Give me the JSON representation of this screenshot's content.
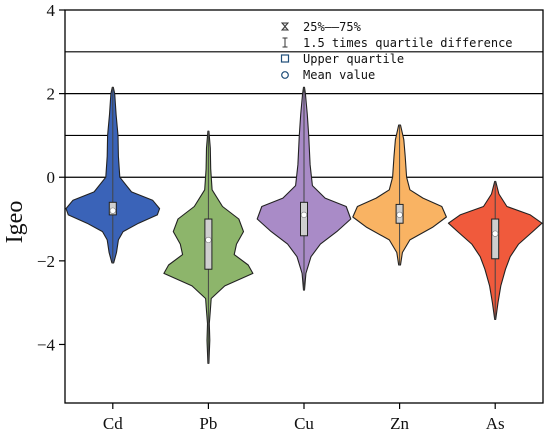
{
  "chart_data": {
    "type": "violin",
    "ylabel": "Igeo",
    "xlabel": "",
    "ylim": [
      -5.4,
      4
    ],
    "yticks": [
      -4,
      -2,
      0,
      2,
      4
    ],
    "reference_lines": [
      0,
      1,
      2,
      3
    ],
    "grid": false,
    "legend_position": "top-right",
    "legend": [
      {
        "symbol": "box-icon",
        "label": "25%——75%"
      },
      {
        "symbol": "whisker-icon",
        "label": "1.5 times quartile difference"
      },
      {
        "symbol": "square-icon",
        "label": "Upper quartile"
      },
      {
        "symbol": "circle-icon",
        "label": "Mean value"
      }
    ],
    "categories": [
      "Cd",
      "Pb",
      "Cu",
      "Zn",
      "As"
    ],
    "colors": [
      "#3a63b8",
      "#8db56b",
      "#a98bc7",
      "#f9b363",
      "#f05a3c"
    ],
    "series": [
      {
        "category": "Cd",
        "min": -2.05,
        "max": 2.15,
        "q1": -0.9,
        "median": -0.8,
        "q3": -0.6,
        "mean": -0.75,
        "profile": [
          [
            -2.05,
            0.02
          ],
          [
            -1.8,
            0.08
          ],
          [
            -1.5,
            0.12
          ],
          [
            -1.3,
            0.22
          ],
          [
            -1.1,
            0.55
          ],
          [
            -0.9,
            0.95
          ],
          [
            -0.75,
            1.0
          ],
          [
            -0.55,
            0.85
          ],
          [
            -0.35,
            0.4
          ],
          [
            0.0,
            0.15
          ],
          [
            0.5,
            0.12
          ],
          [
            1.0,
            0.11
          ],
          [
            1.5,
            0.07
          ],
          [
            2.0,
            0.04
          ],
          [
            2.15,
            0.01
          ]
        ]
      },
      {
        "category": "Pb",
        "min": -4.45,
        "max": 1.1,
        "q1": -2.2,
        "median": -1.5,
        "q3": -1.0,
        "mean": -1.45,
        "profile": [
          [
            -4.45,
            0.01
          ],
          [
            -4.2,
            0.02
          ],
          [
            -3.9,
            0.03
          ],
          [
            -3.5,
            0.02
          ],
          [
            -3.2,
            0.04
          ],
          [
            -2.9,
            0.06
          ],
          [
            -2.6,
            0.35
          ],
          [
            -2.3,
            0.95
          ],
          [
            -2.1,
            0.85
          ],
          [
            -1.85,
            0.55
          ],
          [
            -1.6,
            0.6
          ],
          [
            -1.3,
            0.75
          ],
          [
            -1.0,
            0.65
          ],
          [
            -0.7,
            0.3
          ],
          [
            -0.3,
            0.08
          ],
          [
            0.2,
            0.05
          ],
          [
            0.7,
            0.04
          ],
          [
            1.1,
            0.01
          ]
        ]
      },
      {
        "category": "Cu",
        "min": -2.7,
        "max": 2.15,
        "q1": -1.4,
        "median": -0.9,
        "q3": -0.6,
        "mean": -0.85,
        "profile": [
          [
            -2.7,
            0.01
          ],
          [
            -2.3,
            0.04
          ],
          [
            -1.9,
            0.15
          ],
          [
            -1.6,
            0.35
          ],
          [
            -1.3,
            0.7
          ],
          [
            -1.0,
            1.0
          ],
          [
            -0.7,
            0.9
          ],
          [
            -0.5,
            0.45
          ],
          [
            -0.2,
            0.18
          ],
          [
            0.3,
            0.13
          ],
          [
            1.0,
            0.1
          ],
          [
            1.5,
            0.07
          ],
          [
            2.0,
            0.03
          ],
          [
            2.15,
            0.01
          ]
        ]
      },
      {
        "category": "Zn",
        "min": -2.1,
        "max": 1.25,
        "q1": -1.1,
        "median": -0.9,
        "q3": -0.65,
        "mean": -0.85,
        "profile": [
          [
            -2.1,
            0.02
          ],
          [
            -1.8,
            0.06
          ],
          [
            -1.5,
            0.22
          ],
          [
            -1.2,
            0.7
          ],
          [
            -0.95,
            1.0
          ],
          [
            -0.7,
            0.9
          ],
          [
            -0.5,
            0.5
          ],
          [
            -0.3,
            0.22
          ],
          [
            0.0,
            0.15
          ],
          [
            0.5,
            0.12
          ],
          [
            0.9,
            0.09
          ],
          [
            1.25,
            0.02
          ]
        ]
      },
      {
        "category": "As",
        "min": -3.4,
        "max": -0.1,
        "q1": -1.95,
        "median": -1.35,
        "q3": -1.0,
        "mean": -1.3,
        "profile": [
          [
            -3.4,
            0.01
          ],
          [
            -3.0,
            0.06
          ],
          [
            -2.6,
            0.12
          ],
          [
            -2.2,
            0.22
          ],
          [
            -1.9,
            0.32
          ],
          [
            -1.6,
            0.5
          ],
          [
            -1.3,
            0.8
          ],
          [
            -1.1,
            1.0
          ],
          [
            -0.9,
            0.75
          ],
          [
            -0.7,
            0.25
          ],
          [
            -0.4,
            0.08
          ],
          [
            -0.1,
            0.01
          ]
        ]
      }
    ]
  }
}
